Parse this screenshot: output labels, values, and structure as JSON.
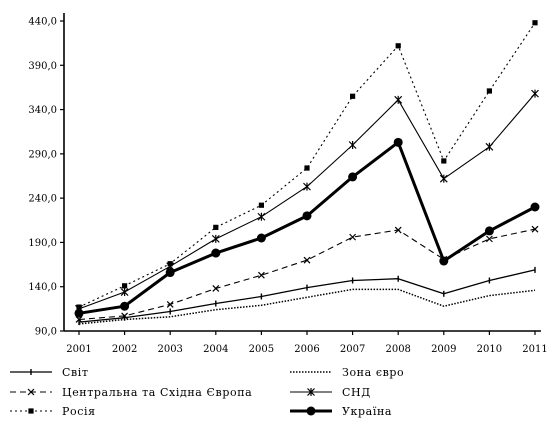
{
  "chart_data": {
    "type": "line",
    "title": "",
    "xlabel": "",
    "ylabel": "",
    "categories": [
      "2001",
      "2002",
      "2003",
      "2004",
      "2005",
      "2006",
      "2007",
      "2008",
      "2009",
      "2010",
      "2011"
    ],
    "y_tick_labels": [
      "90,0",
      "140,0",
      "190,0",
      "240,0",
      "290,0",
      "340,0",
      "390,0",
      "440,0"
    ],
    "ylim": [
      90,
      440
    ],
    "grid": false,
    "legend_position": "bottom",
    "series": [
      {
        "name": "Світ",
        "style": "solid",
        "marker": "tick",
        "stroke_width": 1.3,
        "color": "#000000",
        "values": [
          100,
          105,
          112,
          121,
          129,
          139,
          147,
          149,
          132,
          147,
          159
        ]
      },
      {
        "name": "Зона євро",
        "style": "dotted-heavy",
        "marker": "none",
        "stroke_width": 1.5,
        "color": "#000000",
        "values": [
          98,
          103,
          106,
          114,
          119,
          128,
          137,
          137,
          118,
          130,
          136
        ]
      },
      {
        "name": "Центральна та Східна Європа",
        "style": "dashed",
        "marker": "x",
        "stroke_width": 1.1,
        "color": "#000000",
        "values": [
          103,
          107,
          120,
          138,
          153,
          170,
          196,
          204,
          171,
          194,
          205
        ]
      },
      {
        "name": "СНД",
        "style": "solid",
        "marker": "star",
        "stroke_width": 1.1,
        "color": "#000000",
        "values": [
          115,
          134,
          163,
          194,
          219,
          253,
          300,
          351,
          262,
          298,
          358
        ]
      },
      {
        "name": "Росія",
        "style": "dotted",
        "marker": "square",
        "stroke_width": 1.1,
        "color": "#000000",
        "values": [
          117,
          141,
          166,
          207,
          232,
          274,
          355,
          412,
          282,
          361,
          438
        ]
      },
      {
        "name": "Україна",
        "style": "solid-bold",
        "marker": "diamond",
        "stroke_width": 3,
        "color": "#000000",
        "values": [
          110,
          118,
          156,
          178,
          195,
          220,
          264,
          303,
          169,
          203,
          230
        ]
      }
    ]
  }
}
